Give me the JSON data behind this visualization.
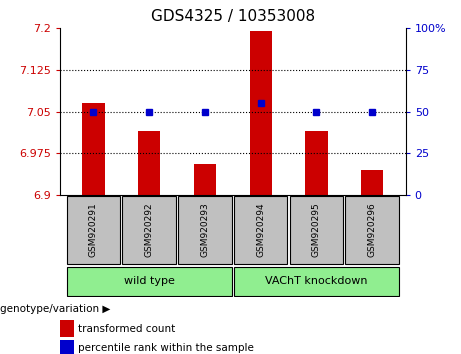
{
  "title": "GDS4325 / 10353008",
  "samples": [
    "GSM920291",
    "GSM920292",
    "GSM920293",
    "GSM920294",
    "GSM920295",
    "GSM920296"
  ],
  "transformed_counts": [
    7.065,
    7.015,
    6.955,
    7.195,
    7.015,
    6.945
  ],
  "percentile_ranks": [
    50,
    50,
    50,
    55,
    50,
    50
  ],
  "ylim_left": [
    6.9,
    7.2
  ],
  "ylim_right": [
    0,
    100
  ],
  "yticks_left": [
    6.9,
    6.975,
    7.05,
    7.125,
    7.2
  ],
  "ytick_labels_left": [
    "6.9",
    "6.975",
    "7.05",
    "7.125",
    "7.2"
  ],
  "yticks_right": [
    0,
    25,
    50,
    75,
    100
  ],
  "ytick_labels_right": [
    "0",
    "25",
    "50",
    "75",
    "100%"
  ],
  "hlines": [
    7.125,
    7.05,
    6.975
  ],
  "bar_color": "#cc0000",
  "dot_color": "#0000cc",
  "bar_baseline": 6.9,
  "groups": [
    {
      "label": "wild type",
      "indices": [
        0,
        1,
        2
      ],
      "color": "#90ee90"
    },
    {
      "label": "VAChT knockdown",
      "indices": [
        3,
        4,
        5
      ],
      "color": "#90ee90"
    }
  ],
  "group_label_prefix": "genotype/variation",
  "legend_items": [
    {
      "label": "transformed count",
      "color": "#cc0000"
    },
    {
      "label": "percentile rank within the sample",
      "color": "#0000cc"
    }
  ],
  "tick_label_color_left": "#cc0000",
  "tick_label_color_right": "#0000cc",
  "bg_color": "#ffffff",
  "plot_bg_color": "#ffffff",
  "xlabel_area_color": "#c0c0c0",
  "group_box_color": "#90ee90"
}
